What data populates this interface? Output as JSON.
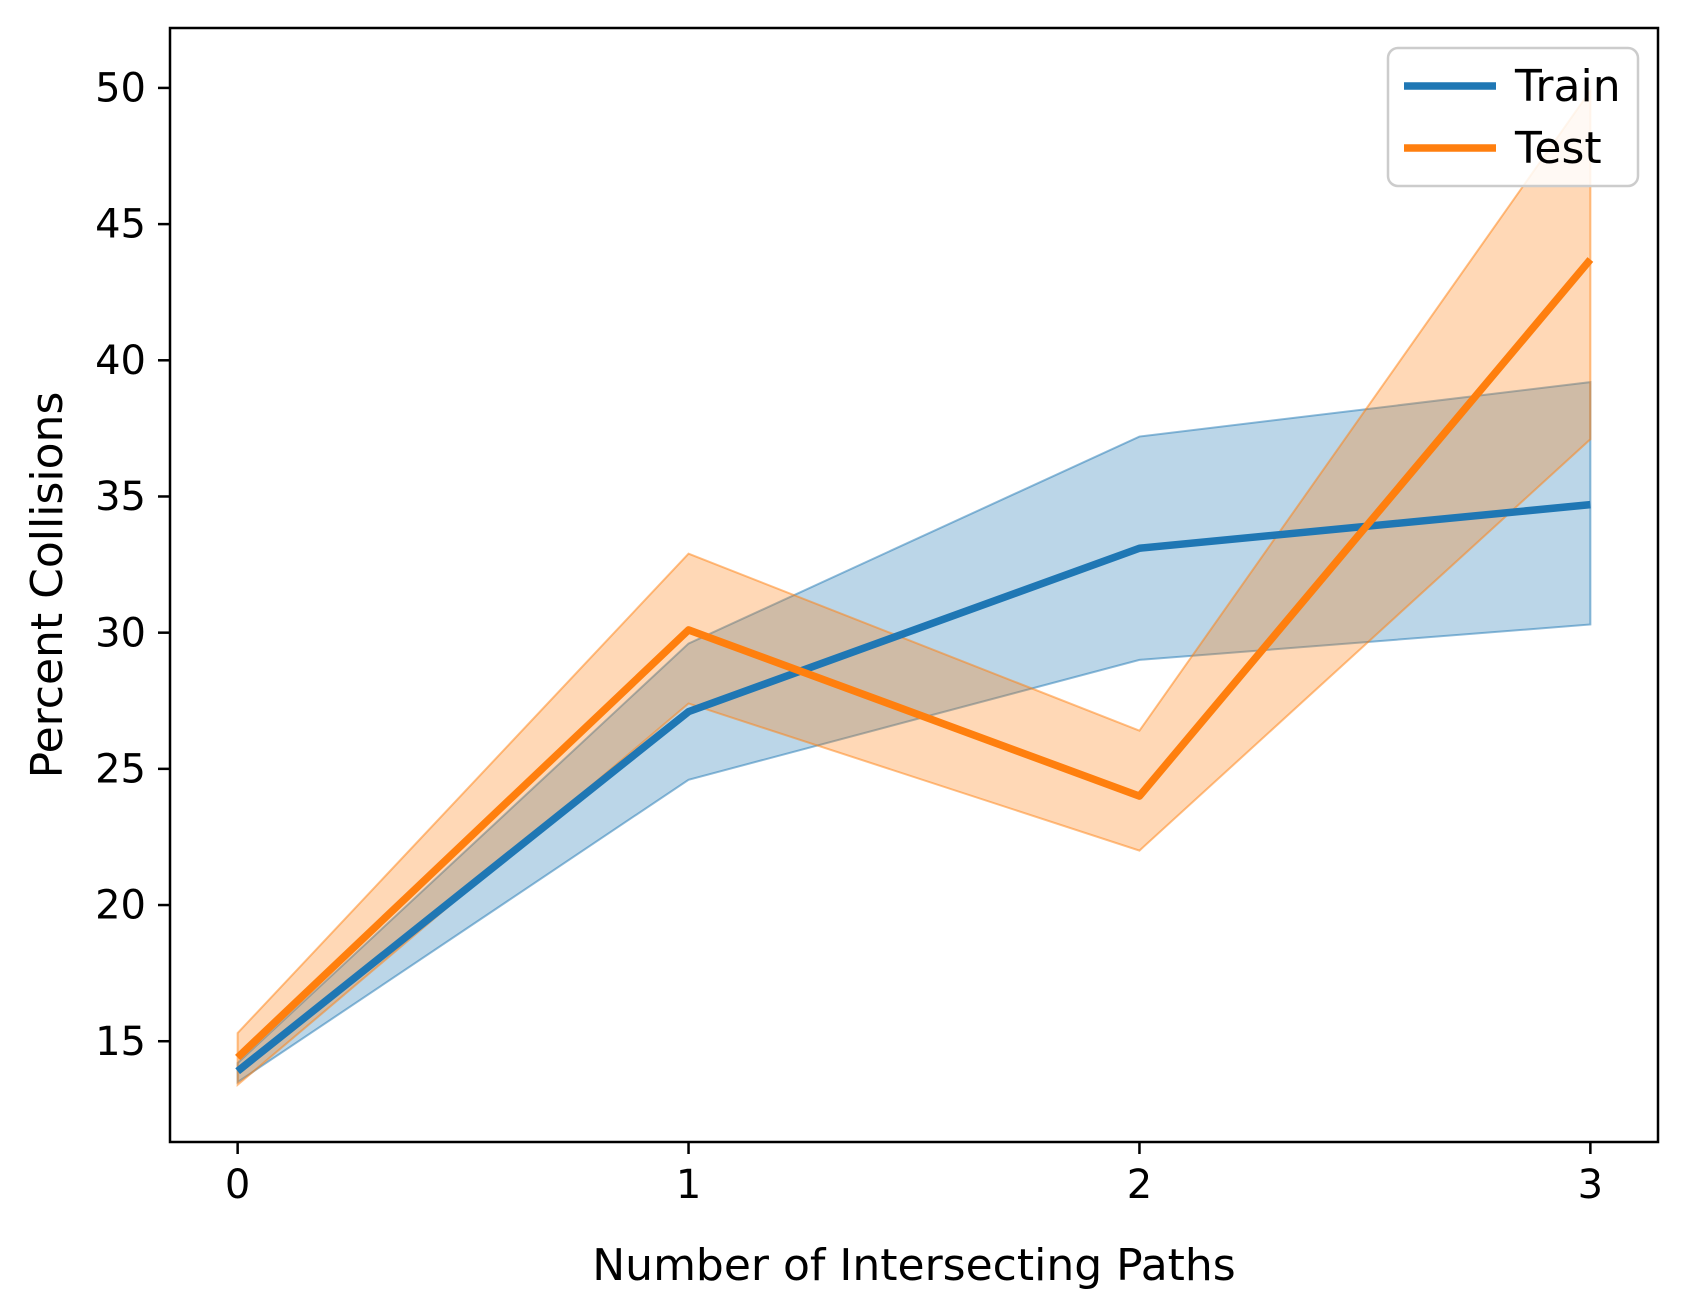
{
  "figure": {
    "background": "#ffffff",
    "spine_color": "#000000",
    "tick_color": "#000000",
    "band_fill_opacity": 0.3,
    "band_edge_opacity": 0.5,
    "legend_border_color": "#cccccc",
    "legend_background": "#ffffff"
  },
  "chart_data": {
    "type": "line",
    "title": "",
    "xlabel": "Number of Intersecting Paths",
    "ylabel": "Percent Collisions",
    "x": [
      0,
      1,
      2,
      3
    ],
    "xlim": [
      -0.15,
      3.15
    ],
    "ylim": [
      11.3,
      52.2
    ],
    "grid": false,
    "xticks": {
      "positions": [
        0,
        1,
        2,
        3
      ],
      "labels": [
        "0",
        "1",
        "2",
        "3"
      ]
    },
    "yticks": {
      "positions": [
        15,
        20,
        25,
        30,
        35,
        40,
        45,
        50
      ],
      "labels": [
        "15",
        "20",
        "25",
        "30",
        "35",
        "40",
        "45",
        "50"
      ]
    },
    "legend": {
      "position": "upper right"
    },
    "series": [
      {
        "name": "Train",
        "color": "#1f77b4",
        "values": [
          13.9,
          27.1,
          33.1,
          34.7
        ],
        "band_lower": [
          13.5,
          24.6,
          29.0,
          30.3
        ],
        "band_upper": [
          14.2,
          29.6,
          37.2,
          39.2
        ]
      },
      {
        "name": "Test",
        "color": "#ff7f0e",
        "values": [
          14.4,
          30.1,
          24.0,
          43.7
        ],
        "band_lower": [
          13.4,
          27.4,
          22.0,
          37.1
        ],
        "band_upper": [
          15.3,
          32.9,
          26.4,
          49.9
        ]
      }
    ]
  }
}
